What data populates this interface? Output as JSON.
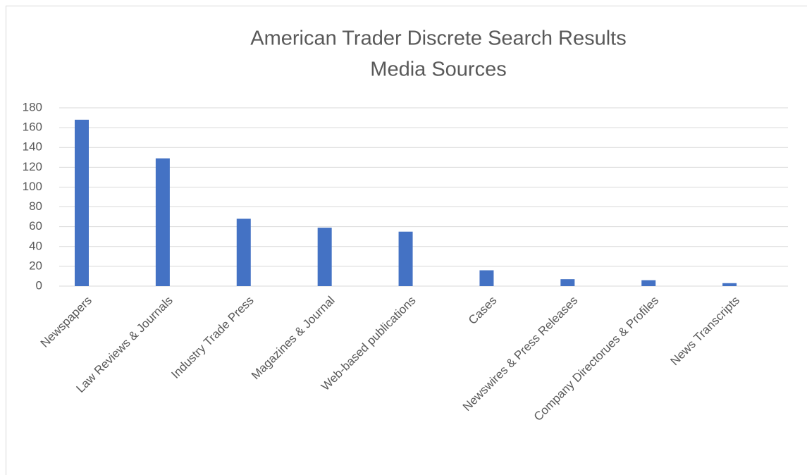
{
  "chart_data": {
    "type": "bar",
    "title": "American Trader Discrete Search Results",
    "subtitle": "Media Sources",
    "categories": [
      "Newspapers",
      "Law Reviews & Journals",
      "Industry Trade Press",
      "Magazines & Journal",
      "Web-based publications",
      "Cases",
      "Newswires & Press Releases",
      "Company Directorues & Profiles",
      "News Transcripts"
    ],
    "values": [
      168,
      129,
      68,
      59,
      55,
      16,
      7,
      6,
      3
    ],
    "color": "#4472c4",
    "ylim": [
      0,
      180
    ],
    "yticks": [
      0,
      20,
      40,
      60,
      80,
      100,
      120,
      140,
      160,
      180
    ],
    "grid": true
  }
}
